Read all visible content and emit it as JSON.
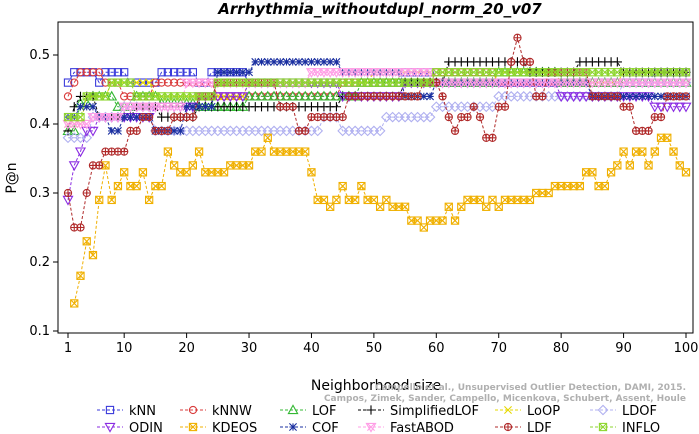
{
  "chart_data": {
    "type": "line",
    "title": "Arrhythmia_withoutdupl_norm_20_v07",
    "xlabel": "Neighborhood size",
    "ylabel": "P@n",
    "xlim": [
      1,
      100
    ],
    "ylim": [
      0.1,
      0.55
    ],
    "xticks": [
      1,
      10,
      20,
      30,
      40,
      50,
      60,
      70,
      80,
      90,
      100
    ],
    "yticks": [
      0.1,
      0.2,
      0.3,
      0.4,
      0.5
    ],
    "legend_position": "bottom",
    "credit_lines": [
      "Campello et al., Unsupervised Outlier Detection, DAMI, 2015.",
      "Campos, Zimek, Sander, Campello, Micenkova, Schubert, Assent, Houle"
    ],
    "series": [
      {
        "name": "kNN",
        "color": "#3a3adb",
        "marker": "square",
        "keys": [
          [
            1,
            0.46
          ],
          [
            2,
            0.475
          ],
          [
            5,
            0.475
          ],
          [
            6,
            0.46
          ],
          [
            7,
            0.475
          ],
          [
            11,
            0.46
          ],
          [
            16,
            0.475
          ],
          [
            22,
            0.46
          ],
          [
            24,
            0.475
          ],
          [
            30,
            0.46
          ],
          [
            45,
            0.46
          ],
          [
            55,
            0.475
          ],
          [
            60,
            0.46
          ],
          [
            70,
            0.46
          ],
          [
            90,
            0.46
          ],
          [
            95,
            0.475
          ],
          [
            100,
            0.475
          ]
        ]
      },
      {
        "name": "kNNW",
        "color": "#d93b3b",
        "marker": "circle",
        "keys": [
          [
            1,
            0.44
          ],
          [
            2,
            0.46
          ],
          [
            3,
            0.475
          ],
          [
            7,
            0.46
          ],
          [
            10,
            0.44
          ],
          [
            15,
            0.46
          ],
          [
            25,
            0.44
          ],
          [
            35,
            0.44
          ],
          [
            45,
            0.46
          ],
          [
            55,
            0.46
          ],
          [
            60,
            0.475
          ],
          [
            70,
            0.46
          ],
          [
            80,
            0.46
          ],
          [
            90,
            0.46
          ],
          [
            100,
            0.46
          ]
        ]
      },
      {
        "name": "LOF",
        "color": "#33b833",
        "marker": "triangle-up",
        "keys": [
          [
            1,
            0.39
          ],
          [
            3,
            0.43
          ],
          [
            5,
            0.44
          ],
          [
            9,
            0.425
          ],
          [
            12,
            0.44
          ],
          [
            16,
            0.43
          ],
          [
            22,
            0.425
          ],
          [
            30,
            0.44
          ],
          [
            40,
            0.44
          ],
          [
            48,
            0.46
          ],
          [
            60,
            0.46
          ],
          [
            70,
            0.475
          ],
          [
            80,
            0.46
          ],
          [
            90,
            0.46
          ],
          [
            100,
            0.46
          ]
        ]
      },
      {
        "name": "SimplifiedLOF",
        "color": "#000000",
        "marker": "plus",
        "keys": [
          [
            1,
            0.39
          ],
          [
            2,
            0.425
          ],
          [
            3,
            0.44
          ],
          [
            6,
            0.41
          ],
          [
            8,
            0.41
          ],
          [
            12,
            0.425
          ],
          [
            16,
            0.41
          ],
          [
            22,
            0.425
          ],
          [
            30,
            0.425
          ],
          [
            40,
            0.425
          ],
          [
            45,
            0.44
          ],
          [
            55,
            0.46
          ],
          [
            62,
            0.49
          ],
          [
            65,
            0.49
          ],
          [
            70,
            0.49
          ],
          [
            75,
            0.475
          ],
          [
            83,
            0.49
          ],
          [
            90,
            0.475
          ],
          [
            100,
            0.475
          ]
        ]
      },
      {
        "name": "LoOP",
        "color": "#e6d800",
        "marker": "x",
        "keys": [
          [
            1,
            0.4
          ],
          [
            4,
            0.44
          ],
          [
            8,
            0.46
          ],
          [
            15,
            0.44
          ],
          [
            22,
            0.44
          ],
          [
            30,
            0.46
          ],
          [
            40,
            0.46
          ],
          [
            50,
            0.475
          ],
          [
            60,
            0.46
          ],
          [
            70,
            0.475
          ],
          [
            80,
            0.46
          ],
          [
            90,
            0.475
          ],
          [
            100,
            0.475
          ]
        ]
      },
      {
        "name": "LDOF",
        "color": "#b0b0f0",
        "marker": "diamond",
        "keys": [
          [
            1,
            0.38
          ],
          [
            5,
            0.41
          ],
          [
            10,
            0.425
          ],
          [
            15,
            0.39
          ],
          [
            20,
            0.39
          ],
          [
            30,
            0.39
          ],
          [
            38,
            0.39
          ],
          [
            42,
            0.41
          ],
          [
            45,
            0.39
          ],
          [
            52,
            0.41
          ],
          [
            60,
            0.425
          ],
          [
            70,
            0.44
          ],
          [
            80,
            0.44
          ],
          [
            90,
            0.46
          ],
          [
            100,
            0.46
          ]
        ]
      },
      {
        "name": "ODIN",
        "color": "#8a2be2",
        "marker": "triangle-down",
        "keys": [
          [
            1,
            0.29
          ],
          [
            2,
            0.34
          ],
          [
            3,
            0.36
          ],
          [
            4,
            0.39
          ],
          [
            6,
            0.41
          ],
          [
            10,
            0.41
          ],
          [
            15,
            0.425
          ],
          [
            22,
            0.44
          ],
          [
            30,
            0.46
          ],
          [
            38,
            0.46
          ],
          [
            45,
            0.44
          ],
          [
            55,
            0.46
          ],
          [
            65,
            0.46
          ],
          [
            70,
            0.46
          ],
          [
            80,
            0.44
          ],
          [
            90,
            0.44
          ],
          [
            95,
            0.425
          ],
          [
            100,
            0.425
          ]
        ]
      },
      {
        "name": "KDEOS",
        "color": "#f0b000",
        "marker": "square-x",
        "keys": [
          [
            2,
            0.14
          ],
          [
            3,
            0.18
          ],
          [
            4,
            0.23
          ],
          [
            5,
            0.21
          ],
          [
            6,
            0.29
          ],
          [
            7,
            0.34
          ],
          [
            8,
            0.29
          ],
          [
            9,
            0.31
          ],
          [
            10,
            0.33
          ],
          [
            11,
            0.31
          ],
          [
            13,
            0.33
          ],
          [
            14,
            0.29
          ],
          [
            15,
            0.31
          ],
          [
            17,
            0.36
          ],
          [
            18,
            0.34
          ],
          [
            19,
            0.33
          ],
          [
            20,
            0.33
          ],
          [
            21,
            0.34
          ],
          [
            22,
            0.36
          ],
          [
            23,
            0.33
          ],
          [
            26,
            0.33
          ],
          [
            27,
            0.34
          ],
          [
            30,
            0.34
          ],
          [
            31,
            0.36
          ],
          [
            33,
            0.38
          ],
          [
            34,
            0.36
          ],
          [
            38,
            0.36
          ],
          [
            40,
            0.33
          ],
          [
            41,
            0.29
          ],
          [
            42,
            0.29
          ],
          [
            43,
            0.28
          ],
          [
            44,
            0.29
          ],
          [
            45,
            0.31
          ],
          [
            46,
            0.29
          ],
          [
            47,
            0.29
          ],
          [
            48,
            0.31
          ],
          [
            49,
            0.29
          ],
          [
            50,
            0.29
          ],
          [
            51,
            0.28
          ],
          [
            52,
            0.29
          ],
          [
            53,
            0.28
          ],
          [
            55,
            0.28
          ],
          [
            56,
            0.26
          ],
          [
            58,
            0.25
          ],
          [
            59,
            0.26
          ],
          [
            61,
            0.26
          ],
          [
            62,
            0.28
          ],
          [
            63,
            0.26
          ],
          [
            64,
            0.28
          ],
          [
            65,
            0.29
          ],
          [
            67,
            0.29
          ],
          [
            68,
            0.28
          ],
          [
            69,
            0.29
          ],
          [
            70,
            0.28
          ],
          [
            71,
            0.29
          ],
          [
            75,
            0.29
          ],
          [
            76,
            0.3
          ],
          [
            79,
            0.31
          ],
          [
            83,
            0.31
          ],
          [
            84,
            0.33
          ],
          [
            86,
            0.31
          ],
          [
            88,
            0.33
          ],
          [
            89,
            0.34
          ],
          [
            90,
            0.36
          ],
          [
            91,
            0.34
          ],
          [
            92,
            0.36
          ],
          [
            93,
            0.36
          ],
          [
            94,
            0.34
          ],
          [
            95,
            0.36
          ],
          [
            96,
            0.38
          ],
          [
            97,
            0.38
          ],
          [
            98,
            0.36
          ],
          [
            99,
            0.34
          ],
          [
            100,
            0.33
          ]
        ]
      },
      {
        "name": "COF",
        "color": "#1a2fa0",
        "marker": "star",
        "keys": [
          [
            1,
            0.41
          ],
          [
            3,
            0.425
          ],
          [
            6,
            0.41
          ],
          [
            8,
            0.39
          ],
          [
            10,
            0.41
          ],
          [
            15,
            0.39
          ],
          [
            20,
            0.425
          ],
          [
            25,
            0.475
          ],
          [
            29,
            0.475
          ],
          [
            31,
            0.49
          ],
          [
            40,
            0.49
          ],
          [
            45,
            0.475
          ],
          [
            50,
            0.475
          ],
          [
            55,
            0.44
          ],
          [
            60,
            0.46
          ],
          [
            70,
            0.46
          ],
          [
            75,
            0.46
          ],
          [
            85,
            0.44
          ],
          [
            90,
            0.44
          ],
          [
            100,
            0.44
          ]
        ]
      },
      {
        "name": "FastABOD",
        "color": "#ff9ee6",
        "marker": "triangle-down-x",
        "keys": [
          [
            1,
            0.4
          ],
          [
            5,
            0.41
          ],
          [
            10,
            0.425
          ],
          [
            20,
            0.46
          ],
          [
            30,
            0.46
          ],
          [
            40,
            0.475
          ],
          [
            50,
            0.475
          ],
          [
            60,
            0.46
          ],
          [
            70,
            0.46
          ],
          [
            80,
            0.46
          ],
          [
            90,
            0.46
          ],
          [
            100,
            0.46
          ]
        ]
      },
      {
        "name": "LDF",
        "color": "#b02a2a",
        "marker": "circle-plus",
        "keys": [
          [
            1,
            0.3
          ],
          [
            2,
            0.25
          ],
          [
            3,
            0.25
          ],
          [
            4,
            0.3
          ],
          [
            5,
            0.34
          ],
          [
            7,
            0.36
          ],
          [
            9,
            0.36
          ],
          [
            11,
            0.39
          ],
          [
            13,
            0.41
          ],
          [
            15,
            0.39
          ],
          [
            18,
            0.41
          ],
          [
            21,
            0.41
          ],
          [
            22,
            0.44
          ],
          [
            25,
            0.46
          ],
          [
            30,
            0.46
          ],
          [
            35,
            0.425
          ],
          [
            38,
            0.39
          ],
          [
            40,
            0.41
          ],
          [
            43,
            0.41
          ],
          [
            46,
            0.44
          ],
          [
            52,
            0.44
          ],
          [
            58,
            0.46
          ],
          [
            61,
            0.44
          ],
          [
            62,
            0.41
          ],
          [
            63,
            0.39
          ],
          [
            64,
            0.41
          ],
          [
            66,
            0.425
          ],
          [
            67,
            0.41
          ],
          [
            68,
            0.38
          ],
          [
            69,
            0.38
          ],
          [
            70,
            0.425
          ],
          [
            72,
            0.49
          ],
          [
            73,
            0.525
          ],
          [
            74,
            0.49
          ],
          [
            76,
            0.44
          ],
          [
            78,
            0.475
          ],
          [
            80,
            0.475
          ],
          [
            85,
            0.44
          ],
          [
            88,
            0.44
          ],
          [
            90,
            0.425
          ],
          [
            92,
            0.39
          ],
          [
            93,
            0.39
          ],
          [
            95,
            0.41
          ],
          [
            97,
            0.44
          ],
          [
            100,
            0.44
          ]
        ]
      },
      {
        "name": "INFLO",
        "color": "#8ed62f",
        "marker": "square-x",
        "keys": [
          [
            1,
            0.41
          ],
          [
            4,
            0.44
          ],
          [
            8,
            0.46
          ],
          [
            12,
            0.44
          ],
          [
            20,
            0.44
          ],
          [
            25,
            0.46
          ],
          [
            35,
            0.46
          ],
          [
            45,
            0.46
          ],
          [
            55,
            0.46
          ],
          [
            60,
            0.475
          ],
          [
            70,
            0.475
          ],
          [
            80,
            0.475
          ],
          [
            90,
            0.475
          ],
          [
            100,
            0.475
          ]
        ]
      }
    ]
  }
}
